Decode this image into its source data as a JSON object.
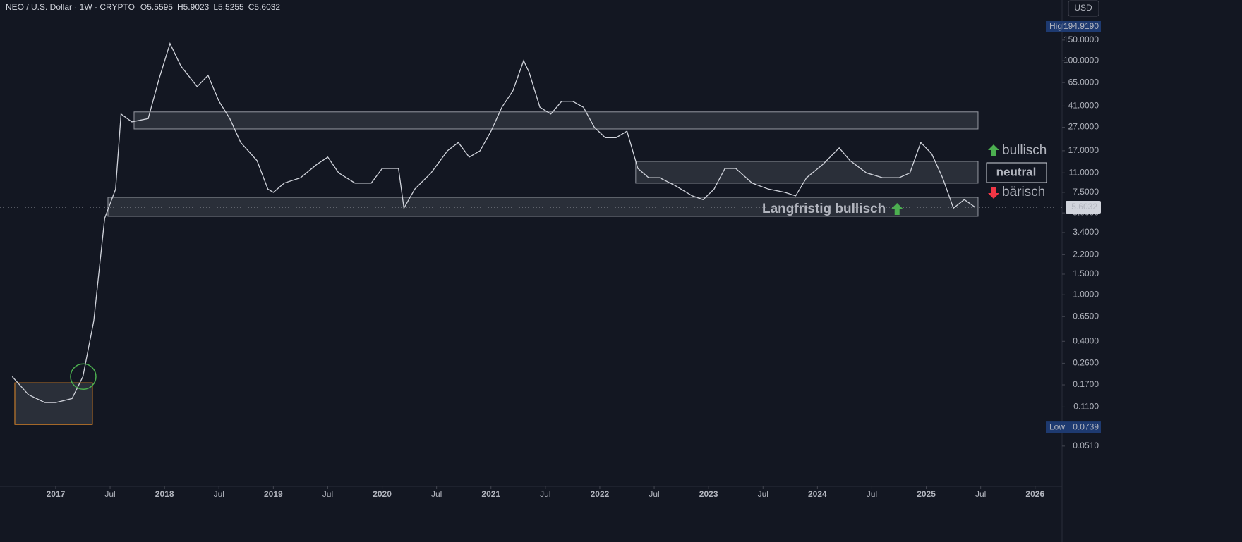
{
  "header": {
    "symbol": "NEO / U.S. Dollar · 1W · CRYPTO",
    "ohlc": [
      "O5.5595",
      "H5.9023",
      "L5.5255",
      "C5.6032"
    ],
    "currency": "USD"
  },
  "chart_data": {
    "type": "line",
    "color": "#d1d4dc",
    "log_scale": true,
    "grid": false,
    "xlim": [
      2016.488,
      2026.248
    ],
    "xticks": [
      2017,
      {
        "value": 2017.5,
        "label": "Jul"
      },
      2018,
      {
        "value": 2018.5,
        "label": "Jul"
      },
      2019,
      {
        "value": 2019.5,
        "label": "Jul"
      },
      2020,
      {
        "value": 2020.5,
        "label": "Jul"
      },
      2021,
      {
        "value": 2021.5,
        "label": "Jul"
      },
      2022,
      {
        "value": 2022.5,
        "label": "Jul"
      },
      2023,
      {
        "value": 2023.5,
        "label": "Jul"
      },
      2024,
      {
        "value": 2024.5,
        "label": "Jul"
      },
      2025,
      {
        "value": 2025.5,
        "label": "Jul"
      },
      2026
    ],
    "ylim": [
      0.035,
      330
    ],
    "yticks": [
      {
        "value": 150,
        "label": "150.0000"
      },
      {
        "value": 100,
        "label": "100.0000"
      },
      {
        "value": 65,
        "label": "65.0000"
      },
      {
        "value": 41,
        "label": "41.0000"
      },
      {
        "value": 27,
        "label": "27.0000"
      },
      {
        "value": 17,
        "label": "17.0000"
      },
      {
        "value": 11,
        "label": "11.0000"
      },
      {
        "value": 7.5,
        "label": "7.5000"
      },
      {
        "value": 5,
        "label": "5.0000"
      },
      {
        "value": 3.4,
        "label": "3.4000"
      },
      {
        "value": 2.2,
        "label": "2.2000"
      },
      {
        "value": 1.5,
        "label": "1.5000"
      },
      {
        "value": 1,
        "label": "1.0000"
      },
      {
        "value": 0.65,
        "label": "0.6500"
      },
      {
        "value": 0.4,
        "label": "0.4000"
      },
      {
        "value": 0.26,
        "label": "0.2600"
      },
      {
        "value": 0.17,
        "label": "0.1700"
      },
      {
        "value": 0.11,
        "label": "0.1100"
      },
      {
        "value": 0.051,
        "label": "0.0510"
      }
    ],
    "x": [
      2016.6,
      2016.75,
      2016.9,
      2017.0,
      2017.15,
      2017.25,
      2017.35,
      2017.45,
      2017.55,
      2017.6,
      2017.7,
      2017.85,
      2017.95,
      2018.05,
      2018.15,
      2018.3,
      2018.4,
      2018.5,
      2018.6,
      2018.7,
      2018.85,
      2018.95,
      2019.0,
      2019.1,
      2019.25,
      2019.4,
      2019.5,
      2019.6,
      2019.75,
      2019.9,
      2020.0,
      2020.15,
      2020.2,
      2020.3,
      2020.45,
      2020.6,
      2020.7,
      2020.8,
      2020.9,
      2021.0,
      2021.1,
      2021.2,
      2021.3,
      2021.35,
      2021.45,
      2021.55,
      2021.65,
      2021.75,
      2021.85,
      2021.95,
      2022.05,
      2022.15,
      2022.25,
      2022.35,
      2022.45,
      2022.55,
      2022.7,
      2022.85,
      2022.95,
      2023.05,
      2023.15,
      2023.25,
      2023.4,
      2023.55,
      2023.7,
      2023.8,
      2023.9,
      2024.05,
      2024.2,
      2024.3,
      2024.45,
      2024.6,
      2024.75,
      2024.85,
      2024.95,
      2025.05,
      2025.15,
      2025.25,
      2025.35,
      2025.45
    ],
    "values": [
      0.2,
      0.14,
      0.12,
      0.12,
      0.13,
      0.2,
      0.6,
      4.5,
      8,
      35,
      30,
      32,
      70,
      140,
      90,
      60,
      75,
      45,
      32,
      20,
      14,
      8,
      7.5,
      9,
      10,
      13,
      15,
      11,
      9,
      9,
      12,
      12,
      5.5,
      8,
      11,
      17,
      20,
      15,
      17,
      25,
      40,
      55,
      100,
      80,
      40,
      35,
      45,
      45,
      40,
      27,
      22,
      22,
      25,
      12,
      10,
      10,
      8.5,
      7,
      6.5,
      8,
      12,
      12,
      9,
      8,
      7.5,
      7,
      10,
      13,
      18,
      14,
      11,
      10,
      10,
      11,
      20,
      16,
      10,
      5.5,
      6.5,
      5.6
    ],
    "high": {
      "label": "High",
      "value": 194.919,
      "value_label": "194.9190"
    },
    "low": {
      "label": "Low",
      "value": 0.0739,
      "value_label": "0.0739"
    },
    "last": 5.6032,
    "zones": [
      {
        "x": [
          2016.624,
          2017.337
        ],
        "y": [
          0.078,
          0.177
        ],
        "color": "#e08a2c"
      },
      {
        "x": [
          2017.72,
          2025.476
        ],
        "y": [
          26.1,
          36.5
        ],
        "color": "#9598a1"
      },
      {
        "x": [
          2022.33,
          2025.476
        ],
        "y": [
          8.98,
          13.8
        ],
        "color": "#9598a1"
      },
      {
        "x": [
          2017.48,
          2025.476
        ],
        "y": [
          4.68,
          6.8
        ],
        "color": "#9598a1"
      }
    ],
    "circle": {
      "x": 2017.253,
      "y": 0.2,
      "color": "#4caf50"
    },
    "annotations": [
      {
        "text": "bullisch",
        "color": "#4caf50"
      },
      {
        "text": "neutral",
        "color": "#ffffff"
      },
      {
        "text": "bärisch",
        "color": "#f23645"
      },
      {
        "text": "Langfristig bullisch",
        "color": "#4caf50"
      }
    ]
  }
}
